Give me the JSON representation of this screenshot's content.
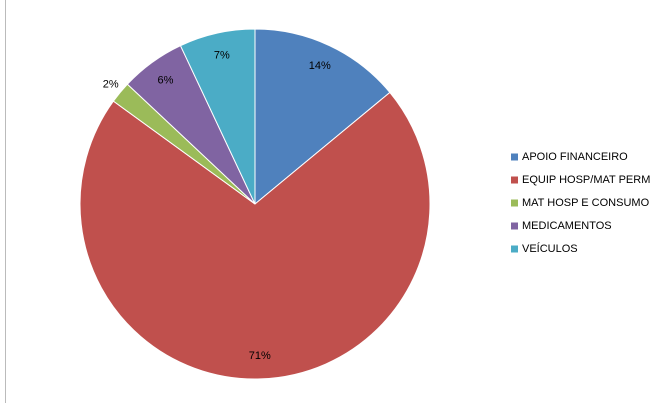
{
  "chart_data": {
    "type": "pie",
    "categories": [
      "APOIO FINANCEIRO",
      "EQUIP HOSP/MAT PERM",
      "MAT HOSP E CONSUMO",
      "MEDICAMENTOS",
      "VEÍCULOS"
    ],
    "values": [
      14,
      71,
      2,
      6,
      7
    ],
    "value_labels": [
      "14%",
      "71%",
      "2%",
      "6%",
      "7%"
    ],
    "colors": [
      "#4f81bd",
      "#c0504d",
      "#9bbb59",
      "#8064a2",
      "#4bacc6"
    ],
    "legend": "right"
  }
}
